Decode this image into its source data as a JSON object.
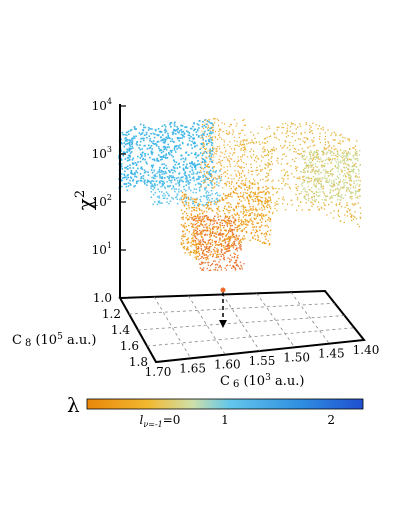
{
  "chart_data": {
    "type": "scatter",
    "title": "",
    "z_axis": {
      "label_main": "χ",
      "label_sup": "2",
      "scale": "log",
      "ticks": [
        {
          "base": "10",
          "exp": "1",
          "value": 10
        },
        {
          "base": "10",
          "exp": "2",
          "value": 100
        },
        {
          "base": "10",
          "exp": "3",
          "value": 1000
        },
        {
          "base": "10",
          "exp": "4",
          "value": 10000
        }
      ]
    },
    "x_axis": {
      "label_pre": "C",
      "label_sub": "6",
      "label_unit_pre": " (10",
      "label_unit_sup": "3",
      "label_unit_post": " a.u.)",
      "ticks": [
        "1.70",
        "1.65",
        "1.60",
        "1.55",
        "1.50",
        "1.45",
        "1.40"
      ],
      "range": [
        1.7,
        1.4
      ]
    },
    "y_axis": {
      "label_pre": "C",
      "label_sub": "8",
      "label_unit_pre": " (10",
      "label_unit_sup": "5",
      "label_unit_post": " a.u.)",
      "ticks": [
        "1.0",
        "1.2",
        "1.4",
        "1.6",
        "1.8"
      ],
      "range": [
        1.0,
        1.8
      ]
    },
    "colorbar": {
      "label": "λ",
      "tick0_pre": "l",
      "tick0_sub": "ν=-1",
      "tick0_post": "=0",
      "ticks": [
        "1",
        "2"
      ],
      "range": [
        -0.3,
        2.3
      ],
      "colors": [
        "#e8870a",
        "#f2b830",
        "#cfe0a8",
        "#62c6ec",
        "#2f8de0",
        "#1f4fd0"
      ]
    },
    "minimum_marker": {
      "c6": 1.6,
      "c8": 1.05,
      "color": "#ef6a2a"
    }
  }
}
